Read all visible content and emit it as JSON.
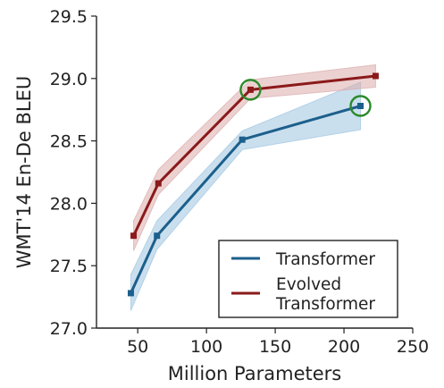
{
  "chart_data": {
    "type": "line",
    "xlabel": "Million Parameters",
    "ylabel": "WMT'14 En-De BLEU",
    "xlim": [
      20,
      250
    ],
    "ylim": [
      27.0,
      29.5
    ],
    "x_ticks": [
      50,
      100,
      150,
      200,
      250
    ],
    "x_tick_labels": [
      "50",
      "100",
      "150",
      "200",
      "250"
    ],
    "y_ticks": [
      27.0,
      27.5,
      28.0,
      28.5,
      29.0,
      29.5
    ],
    "y_tick_labels": [
      "27.0",
      "27.5",
      "28.0",
      "28.5",
      "29.0",
      "29.5"
    ],
    "legend_position": "bottom-right",
    "series": [
      {
        "name": "Transformer",
        "color": "#1c5f8c",
        "band_color": "#9fc5e0",
        "x": [
          45,
          64,
          126,
          212
        ],
        "y": [
          27.28,
          27.74,
          28.51,
          28.78
        ],
        "lower": [
          27.14,
          27.63,
          28.43,
          28.59
        ],
        "upper": [
          27.43,
          27.86,
          28.58,
          28.97
        ],
        "highlighted_point_index": 3
      },
      {
        "name": "Evolved Transformer",
        "color": "#8b1a1a",
        "band_color": "#dcabab",
        "x": [
          47,
          65,
          132,
          223
        ],
        "y": [
          27.74,
          28.16,
          28.91,
          29.02
        ],
        "lower": [
          27.62,
          28.07,
          28.84,
          28.93
        ],
        "upper": [
          27.86,
          28.27,
          28.99,
          29.11
        ],
        "highlighted_point_index": 2
      }
    ],
    "legend": [
      {
        "lines": [
          "Transformer"
        ]
      },
      {
        "lines": [
          "Evolved",
          "Transformer"
        ]
      }
    ],
    "highlight_color": "#2a8a2a"
  }
}
